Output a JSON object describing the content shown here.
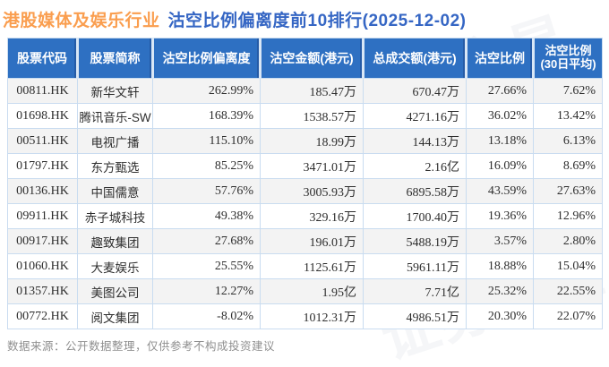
{
  "title": {
    "industry": "港股媒体及娱乐行业",
    "ranking": "沽空比例偏离度前10排行(2025-12-02)"
  },
  "header_last": {
    "line1": "沽空比例",
    "line2": "(30日平均)"
  },
  "footer": {
    "source_note": "数据来源：公开数据整理，仅供参考不构成投资建议"
  },
  "watermark_text": "证券之星",
  "colors": {
    "title_industry": "#fa9e4f",
    "title_ranking": "#3566c4",
    "header_bg": "#2e70c2",
    "header_text": "#ffffff",
    "row_alt_bg": "#f3f3f3",
    "border": "#c9dcf0",
    "footer_text": "#8f8f8f"
  },
  "chart_data": {
    "type": "table",
    "title": "港股媒体及娱乐行业 沽空比例偏离度前10排行(2025-12-02)",
    "date": "2025-12-02",
    "columns": [
      "股票代码",
      "股票简称",
      "沽空比例偏离度",
      "沽空金额(港元)",
      "总成交额(港元)",
      "沽空比例",
      "沽空比例(30日平均)"
    ],
    "rows": [
      [
        "00811.HK",
        "新华文轩",
        "262.99%",
        "185.47万",
        "670.47万",
        "27.66%",
        "7.62%"
      ],
      [
        "01698.HK",
        "腾讯音乐-SW",
        "168.39%",
        "1538.57万",
        "4271.16万",
        "36.02%",
        "13.42%"
      ],
      [
        "00511.HK",
        "电视广播",
        "115.10%",
        "18.99万",
        "144.13万",
        "13.18%",
        "6.13%"
      ],
      [
        "01797.HK",
        "东方甄选",
        "85.25%",
        "3471.01万",
        "2.16亿",
        "16.09%",
        "8.69%"
      ],
      [
        "00136.HK",
        "中国儒意",
        "57.76%",
        "3005.93万",
        "6895.58万",
        "43.59%",
        "27.63%"
      ],
      [
        "09911.HK",
        "赤子城科技",
        "49.38%",
        "329.16万",
        "1700.40万",
        "19.36%",
        "12.96%"
      ],
      [
        "00917.HK",
        "趣致集团",
        "27.68%",
        "196.01万",
        "5488.19万",
        "3.57%",
        "2.80%"
      ],
      [
        "01060.HK",
        "大麦娱乐",
        "25.55%",
        "1125.61万",
        "5961.11万",
        "18.88%",
        "15.04%"
      ],
      [
        "01357.HK",
        "美图公司",
        "12.27%",
        "1.95亿",
        "7.71亿",
        "25.32%",
        "22.55%"
      ],
      [
        "00772.HK",
        "阅文集团",
        "-8.02%",
        "1012.31万",
        "4986.51万",
        "20.30%",
        "22.07%"
      ]
    ]
  }
}
